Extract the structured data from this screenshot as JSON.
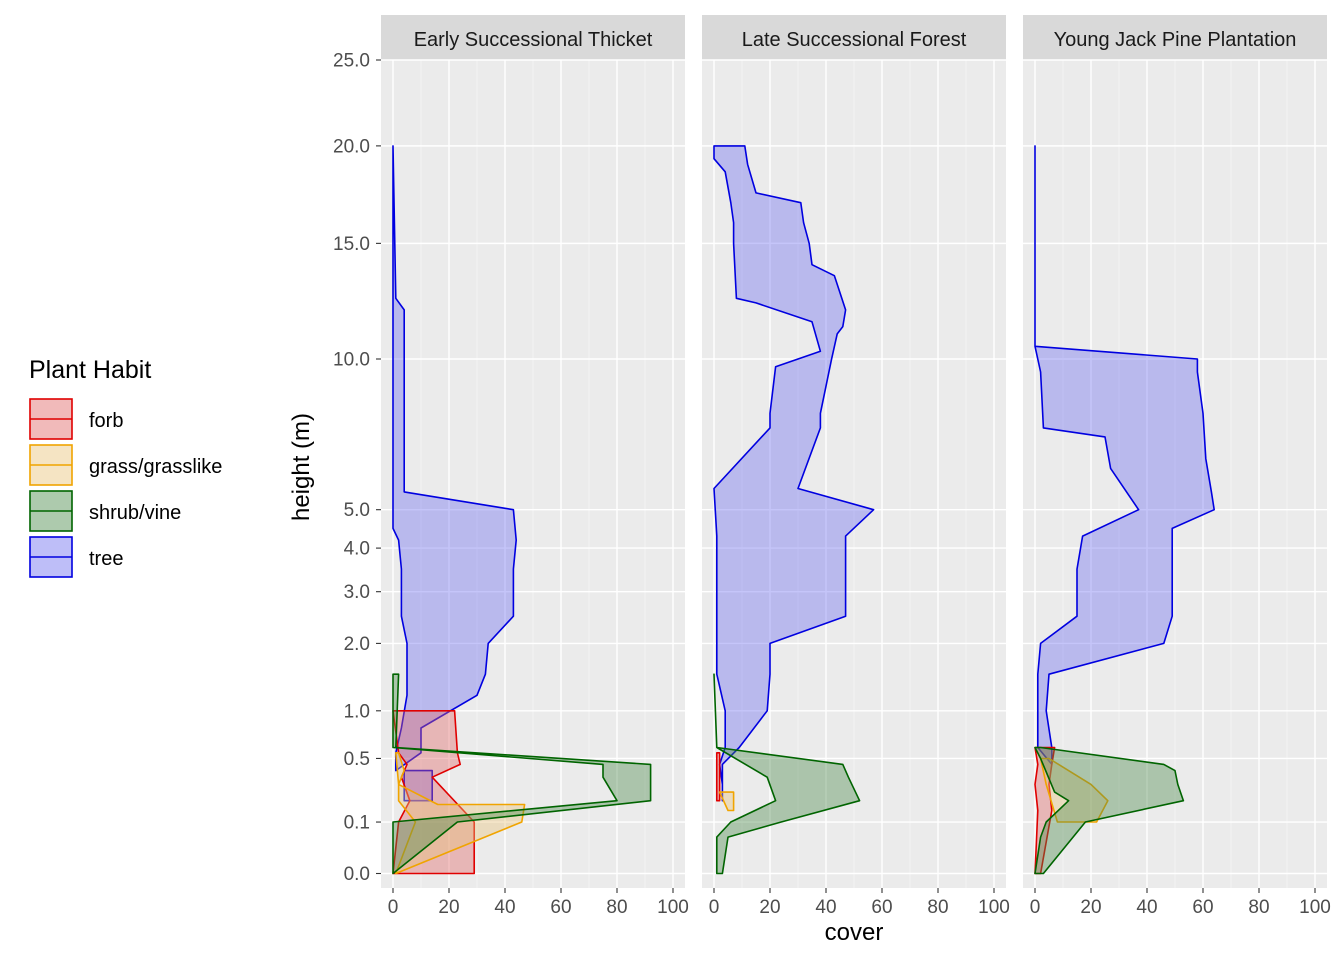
{
  "chart_data": {
    "type": "area",
    "xlabel": "cover",
    "ylabel": "height (m)",
    "xlim": [
      0,
      100
    ],
    "x_ticks": [
      "0",
      "20",
      "40",
      "60",
      "80",
      "100"
    ],
    "y_scale": "sqrt",
    "ylim": [
      0,
      25
    ],
    "y_ticks": [
      "0.0",
      "0.1",
      "0.5",
      "1.0",
      "2.0",
      "3.0",
      "4.0",
      "5.0",
      "10.0",
      "15.0",
      "20.0",
      "25.0"
    ],
    "grid": true,
    "legend": {
      "title": "Plant Habit",
      "position": "left",
      "items": [
        {
          "label": "forb",
          "line": "#e00000",
          "fill": "#e06666"
        },
        {
          "label": "grass/grasslike",
          "line": "#f0a400",
          "fill": "#e8c47a"
        },
        {
          "label": "shrub/vine",
          "line": "#006400",
          "fill": "#4a8a4a"
        },
        {
          "label": "tree",
          "line": "#0000e0",
          "fill": "#6e6ef0"
        }
      ]
    },
    "panels": [
      {
        "title": "Early Successional Thicket",
        "series": [
          {
            "name": "tree",
            "color": "#0000e0",
            "fill": "#6e6ef0",
            "lower": [
              [
                0,
                20
              ],
              [
                0,
                12.5
              ],
              [
                0,
                5.5
              ],
              [
                0,
                4.5
              ],
              [
                2,
                4.2
              ],
              [
                3,
                3.5
              ],
              [
                3,
                2.5
              ],
              [
                5,
                2
              ],
              [
                5,
                1.5
              ],
              [
                5,
                1.2
              ],
              [
                3,
                0.8
              ],
              [
                1,
                0.55
              ],
              [
                1,
                0.4
              ]
            ],
            "upper": [
              [
                0,
                20
              ],
              [
                1,
                12.5
              ],
              [
                4,
                12
              ],
              [
                4,
                5.5
              ],
              [
                43,
                5
              ],
              [
                44,
                4.2
              ],
              [
                43,
                3.5
              ],
              [
                43,
                2.5
              ],
              [
                34,
                2
              ],
              [
                33,
                1.5
              ],
              [
                30,
                1.2
              ],
              [
                10,
                0.8
              ],
              [
                10,
                0.55
              ]
            ]
          },
          {
            "name": "tree",
            "color": "#0000e0",
            "fill": "#6e6ef0",
            "lower": [
              [
                14,
                0.4
              ],
              [
                14,
                0.2
              ]
            ],
            "upper": [
              [
                4,
                0.4
              ],
              [
                4,
                0.2
              ]
            ]
          },
          {
            "name": "forb",
            "color": "#e00000",
            "fill": "#e06666",
            "lower": [
              [
                0,
                1.0
              ],
              [
                2,
                0.55
              ],
              [
                5,
                0.45
              ],
              [
                3,
                0.35
              ],
              [
                6,
                0.2
              ],
              [
                2,
                0.1
              ],
              [
                0,
                0
              ]
            ],
            "upper": [
              [
                22,
                1.0
              ],
              [
                23,
                0.55
              ],
              [
                24,
                0.45
              ],
              [
                14,
                0.35
              ],
              [
                29,
                0.1
              ],
              [
                29,
                0
              ]
            ]
          },
          {
            "name": "grass/grasslike",
            "color": "#f0a400",
            "fill": "#e8c47a",
            "lower": [
              [
                1,
                0.55
              ],
              [
                2,
                0.3
              ],
              [
                2,
                0.2
              ],
              [
                8,
                0.1
              ],
              [
                1,
                0
              ]
            ],
            "upper": [
              [
                2,
                0.55
              ],
              [
                4,
                0.4
              ],
              [
                2,
                0.3
              ],
              [
                16,
                0.18
              ],
              [
                47,
                0.18
              ],
              [
                46,
                0.1
              ],
              [
                1,
                0
              ]
            ]
          },
          {
            "name": "shrub/vine",
            "color": "#006400",
            "fill": "#4a8a4a",
            "lower": [
              [
                0,
                1.5
              ],
              [
                0,
                0.6
              ],
              [
                75,
                0.45
              ],
              [
                75,
                0.35
              ],
              [
                80,
                0.2
              ],
              [
                0,
                0.1
              ],
              [
                0,
                0
              ]
            ],
            "upper": [
              [
                2,
                1.5
              ],
              [
                1,
                0.6
              ],
              [
                92,
                0.45
              ],
              [
                92,
                0.2
              ],
              [
                23,
                0.1
              ],
              [
                0,
                0
              ]
            ]
          }
        ]
      },
      {
        "title": "Late Successional Forest",
        "series": [
          {
            "name": "tree",
            "color": "#0000e0",
            "fill": "#6e6ef0",
            "lower": [
              [
                0,
                20
              ],
              [
                0,
                19.3
              ],
              [
                4,
                18.6
              ],
              [
                6,
                17
              ],
              [
                7,
                16
              ],
              [
                7,
                15
              ],
              [
                8,
                12.5
              ],
              [
                15,
                12.3
              ],
              [
                35,
                11.5
              ],
              [
                38,
                10.3
              ],
              [
                22,
                9.7
              ],
              [
                20,
                8
              ],
              [
                20,
                7.5
              ],
              [
                0,
                5.6
              ],
              [
                1,
                4.3
              ],
              [
                1,
                2.5
              ],
              [
                1,
                1.5
              ],
              [
                4,
                1.0
              ],
              [
                4,
                0.6
              ],
              [
                2,
                0.45
              ],
              [
                3,
                0.3
              ],
              [
                3,
                0.2
              ]
            ],
            "upper": [
              [
                11,
                20
              ],
              [
                12,
                19
              ],
              [
                15,
                17.5
              ],
              [
                31,
                17
              ],
              [
                32,
                16
              ],
              [
                34,
                15
              ],
              [
                35,
                14
              ],
              [
                43,
                13.5
              ],
              [
                47,
                12
              ],
              [
                46,
                11.3
              ],
              [
                44,
                11
              ],
              [
                42,
                10
              ],
              [
                38,
                8
              ],
              [
                38,
                7.5
              ],
              [
                30,
                5.6
              ],
              [
                57,
                5
              ],
              [
                47,
                4.3
              ],
              [
                47,
                2.5
              ],
              [
                20,
                2
              ],
              [
                20,
                1.5
              ],
              [
                19,
                1.0
              ],
              [
                9,
                0.6
              ],
              [
                3,
                0.45
              ]
            ]
          },
          {
            "name": "forb",
            "color": "#e00000",
            "fill": "#e06666",
            "lower": [
              [
                1,
                0.55
              ],
              [
                1,
                0.2
              ]
            ],
            "upper": [
              [
                2,
                0.55
              ],
              [
                2,
                0.2
              ]
            ]
          },
          {
            "name": "grass/grasslike",
            "color": "#f0a400",
            "fill": "#e8c47a",
            "lower": [
              [
                2,
                0.25
              ],
              [
                5,
                0.15
              ]
            ],
            "upper": [
              [
                7,
                0.25
              ],
              [
                7,
                0.15
              ]
            ]
          },
          {
            "name": "shrub/vine",
            "color": "#006400",
            "fill": "#4a8a4a",
            "lower": [
              [
                0,
                1.5
              ],
              [
                1,
                0.6
              ],
              [
                19,
                0.35
              ],
              [
                22,
                0.2
              ],
              [
                6,
                0.1
              ],
              [
                1,
                0.05
              ],
              [
                1,
                0
              ]
            ],
            "upper": [
              [
                0,
                1.5
              ],
              [
                1,
                0.6
              ],
              [
                46,
                0.45
              ],
              [
                48,
                0.35
              ],
              [
                52,
                0.2
              ],
              [
                24,
                0.1
              ],
              [
                5,
                0.05
              ],
              [
                3,
                0
              ]
            ]
          }
        ]
      },
      {
        "title": "Young Jack Pine Plantation",
        "series": [
          {
            "name": "tree",
            "color": "#0000e0",
            "fill": "#6e6ef0",
            "lower": [
              [
                0,
                20
              ],
              [
                0,
                10.5
              ],
              [
                2,
                9.5
              ],
              [
                3,
                7.5
              ],
              [
                25,
                7.2
              ],
              [
                27,
                6.2
              ],
              [
                37,
                5
              ],
              [
                17,
                4.3
              ],
              [
                15,
                3.5
              ],
              [
                15,
                2.5
              ],
              [
                2,
                2
              ],
              [
                1,
                1.5
              ],
              [
                1,
                1.0
              ],
              [
                1,
                0.6
              ]
            ],
            "upper": [
              [
                0,
                20
              ],
              [
                0,
                10.5
              ],
              [
                58,
                10
              ],
              [
                58,
                9.5
              ],
              [
                60,
                8
              ],
              [
                61,
                6.5
              ],
              [
                63,
                5.5
              ],
              [
                64,
                5
              ],
              [
                49,
                4.5
              ],
              [
                49,
                2.5
              ],
              [
                46,
                2
              ],
              [
                5,
                1.5
              ],
              [
                4,
                1.0
              ],
              [
                6,
                0.6
              ],
              [
                6,
                0.45
              ]
            ]
          },
          {
            "name": "forb",
            "color": "#e00000",
            "fill": "#e06666",
            "lower": [
              [
                0,
                0.6
              ],
              [
                1,
                0.45
              ],
              [
                0,
                0.3
              ],
              [
                1,
                0.15
              ],
              [
                0,
                0
              ]
            ],
            "upper": [
              [
                7,
                0.6
              ],
              [
                6,
                0.45
              ],
              [
                5,
                0.3
              ],
              [
                6,
                0.15
              ],
              [
                2,
                0
              ]
            ]
          },
          {
            "name": "grass/grasslike",
            "color": "#f0a400",
            "fill": "#e8c47a",
            "lower": [
              [
                2,
                0.5
              ],
              [
                4,
                0.3
              ],
              [
                8,
                0.1
              ]
            ],
            "upper": [
              [
                5,
                0.5
              ],
              [
                20,
                0.3
              ],
              [
                26,
                0.2
              ],
              [
                22,
                0.1
              ]
            ]
          },
          {
            "name": "shrub/vine",
            "color": "#006400",
            "fill": "#4a8a4a",
            "lower": [
              [
                0,
                0.6
              ],
              [
                2,
                0.5
              ],
              [
                7,
                0.25
              ],
              [
                12,
                0.2
              ],
              [
                4,
                0.1
              ],
              [
                2,
                0.05
              ],
              [
                0,
                0
              ]
            ],
            "upper": [
              [
                2,
                0.6
              ],
              [
                46,
                0.45
              ],
              [
                50,
                0.4
              ],
              [
                51,
                0.3
              ],
              [
                53,
                0.2
              ],
              [
                18,
                0.1
              ],
              [
                3,
                0
              ]
            ]
          }
        ]
      }
    ]
  }
}
